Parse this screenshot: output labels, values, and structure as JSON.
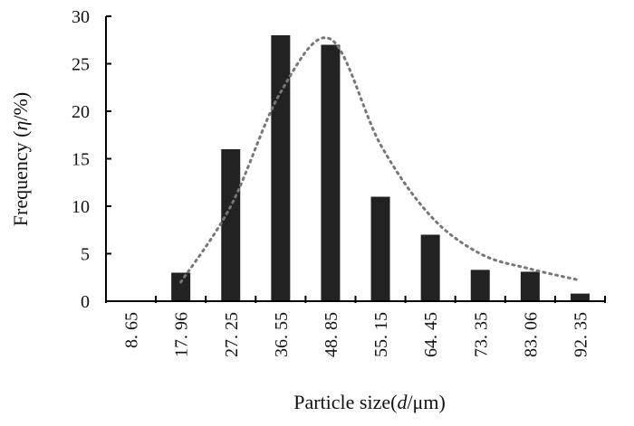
{
  "chart_data": {
    "type": "bar",
    "categories": [
      "8. 65",
      "17. 96",
      "27. 25",
      "36. 55",
      "48. 85",
      "55. 15",
      "64. 45",
      "73. 35",
      "83. 06",
      "92. 35"
    ],
    "series": [
      {
        "type": "bar",
        "values": [
          0,
          3,
          16,
          28,
          27,
          11,
          7,
          3.3,
          3.1,
          0.8
        ]
      },
      {
        "type": "line",
        "style": "dotted",
        "values": [
          null,
          2.0,
          10.0,
          22.0,
          27.6,
          16.5,
          9.0,
          5.0,
          3.4,
          2.2
        ]
      }
    ],
    "xlabel": {
      "prefix": "Particle size(",
      "var": "d",
      "suffix": "/μm)"
    },
    "ylabel": {
      "prefix": "Frequency (",
      "var": "η",
      "suffix": "/%)"
    },
    "ylim": [
      0,
      30
    ],
    "yticks": [
      0,
      5,
      10,
      15,
      20,
      25,
      30
    ],
    "grid": false,
    "colors": {
      "bar": "#222222",
      "line": "#777777",
      "axis": "#000000"
    }
  }
}
